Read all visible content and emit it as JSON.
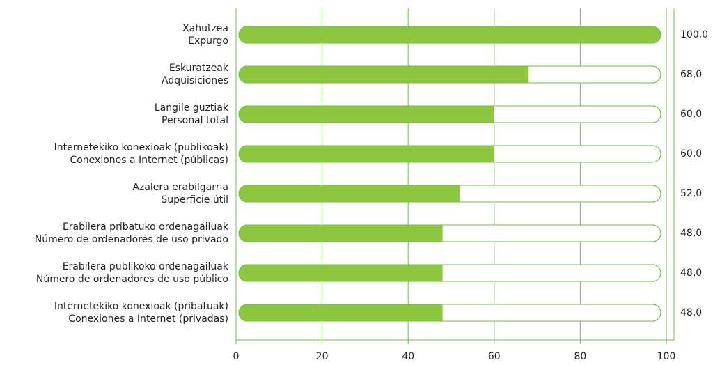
{
  "chart_data": {
    "type": "barh",
    "categories": [
      [
        "Xahutzea",
        "Expurgo"
      ],
      [
        "Eskuratzeak",
        "Adquisiciones"
      ],
      [
        "Langile guztiak",
        "Personal total"
      ],
      [
        "Internetekiko konexioak (publikoak)",
        "Conexiones a Internet (públicas)"
      ],
      [
        "Azalera erabilgarria",
        "Superficie útil"
      ],
      [
        "Erabilera pribatuko ordenagailuak",
        "Número de ordenadores de uso privado"
      ],
      [
        "Erabilera publikoko ordenagailuak",
        "Número de ordenadores de uso público"
      ],
      [
        "Internetekiko konexioak (pribatuak)",
        "Conexiones a Internet (privadas)"
      ]
    ],
    "values": [
      100,
      68,
      60,
      60,
      52,
      48,
      48,
      48
    ],
    "value_labels": [
      "100,0",
      "68,0",
      "60,0",
      "60,0",
      "52,0",
      "48,0",
      "48,0",
      "48,0"
    ],
    "color": "#8dc63f",
    "line_color": "#6cc04a",
    "xlim": [
      0,
      100
    ],
    "xticks": [
      0,
      20,
      40,
      60,
      80,
      100
    ],
    "grid": true
  }
}
